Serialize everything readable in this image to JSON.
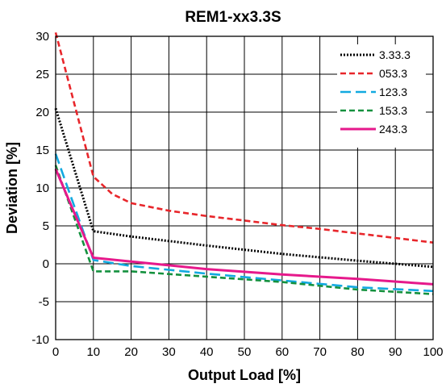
{
  "chart_data": {
    "type": "line",
    "title": "REM1-xx3.3S",
    "xlabel": "Output Load [%]",
    "ylabel": "Deviation [%]",
    "xlim": [
      0,
      100
    ],
    "ylim": [
      -10,
      30
    ],
    "xticks": [
      0,
      10,
      20,
      30,
      40,
      50,
      60,
      70,
      80,
      90,
      100
    ],
    "yticks": [
      -10,
      -5,
      0,
      5,
      10,
      15,
      20,
      25,
      30
    ],
    "grid": true,
    "legend_position": "top-right",
    "series": [
      {
        "name": "3.33.3",
        "color": "#000000",
        "style": "dotted",
        "x": [
          0,
          10,
          20,
          40,
          60,
          80,
          100
        ],
        "y": [
          20.5,
          4.3,
          3.6,
          2.4,
          1.3,
          0.4,
          -0.4
        ]
      },
      {
        "name": "053.3",
        "color": "#e8262b",
        "style": "dashed",
        "x": [
          0,
          10,
          15,
          20,
          30,
          40,
          50,
          60,
          70,
          80,
          90,
          100
        ],
        "y": [
          30.5,
          11.5,
          9.2,
          8.0,
          7.0,
          6.3,
          5.7,
          5.1,
          4.6,
          4.0,
          3.4,
          2.8
        ]
      },
      {
        "name": "123.3",
        "color": "#12a9e0",
        "style": "longdash",
        "x": [
          0,
          10,
          20,
          40,
          60,
          80,
          100
        ],
        "y": [
          14.5,
          0.5,
          -0.3,
          -1.3,
          -2.2,
          -3.1,
          -3.6
        ]
      },
      {
        "name": "153.3",
        "color": "#14913e",
        "style": "dashed",
        "x": [
          0,
          10,
          20,
          40,
          60,
          80,
          100
        ],
        "y": [
          13.0,
          -1.0,
          -1.0,
          -1.7,
          -2.4,
          -3.4,
          -4.0
        ]
      },
      {
        "name": "243.3",
        "color": "#e6198b",
        "style": "solid",
        "x": [
          0,
          10,
          20,
          30,
          40,
          60,
          80,
          100
        ],
        "y": [
          12.5,
          0.8,
          0.3,
          -0.2,
          -0.7,
          -1.4,
          -2.0,
          -2.7
        ]
      }
    ]
  }
}
